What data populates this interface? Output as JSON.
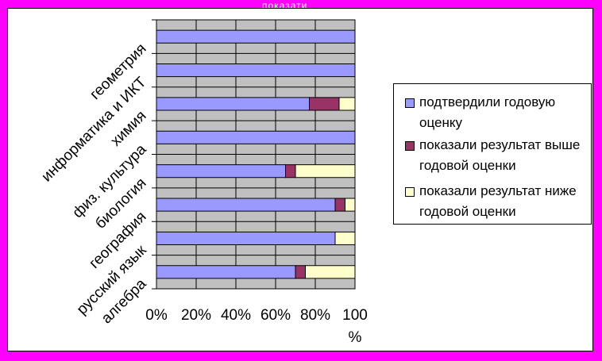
{
  "top_label": "показати",
  "chart_data": {
    "type": "bar",
    "orientation": "horizontal",
    "stacked": "percent",
    "categories": [
      "алгебра",
      "русский язык",
      "география",
      "биология",
      "физ. культура",
      "химия",
      "информатика и ИКТ",
      "геометрия"
    ],
    "series": [
      {
        "name": "подтвердили годовую оценку",
        "color": "#9999ff",
        "values": [
          70,
          90,
          90,
          65,
          100,
          77,
          100,
          100
        ]
      },
      {
        "name": "показали результат выше годовой оценки",
        "color": "#993366",
        "values": [
          5,
          0,
          5,
          5,
          0,
          15,
          0,
          0
        ]
      },
      {
        "name": "показали результат ниже годовой оценки",
        "color": "#ffffcc",
        "values": [
          25,
          10,
          5,
          30,
          0,
          8,
          0,
          0
        ]
      }
    ],
    "x_ticks": [
      "0%",
      "20%",
      "40%",
      "60%",
      "80%",
      "100"
    ],
    "x_unit": "%",
    "xlim": [
      0,
      100
    ],
    "grid": true,
    "plot_background": "#c0c0c0",
    "legend_position": "right"
  }
}
